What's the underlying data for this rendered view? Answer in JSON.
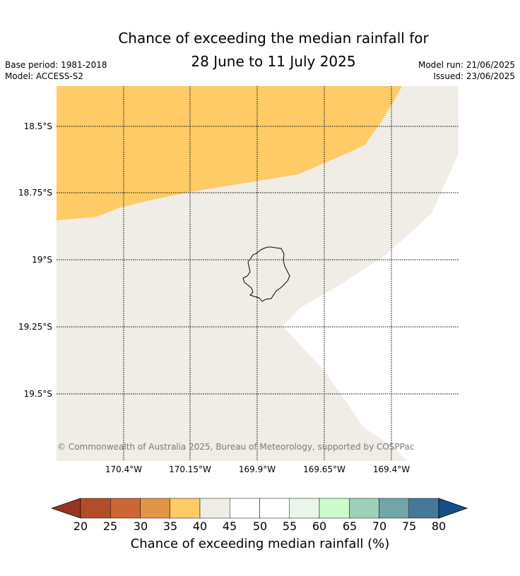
{
  "title_line1": "Chance of exceeding the median rainfall for",
  "title_line2": "28 June to 11 July 2025",
  "base_period": "Base period: 1981-2018",
  "model": "Model: ACCESS-S2",
  "model_run": "Model run: 21/06/2025",
  "issued": "Issued: 23/06/2025",
  "lat_labels": [
    "18.5°S",
    "18.75°S",
    "19°S",
    "19.25°S",
    "19.5°S"
  ],
  "lon_labels": [
    "170.4°W",
    "170.15°W",
    "169.9°W",
    "169.65°W",
    "169.4°W"
  ],
  "copyright": "© Commonwealth of Australia 2025, Bureau of Meteorology, supported by COSPPac",
  "colorbar": {
    "label": "Chance of exceeding median rainfall (%)",
    "ticks": [
      "20",
      "25",
      "30",
      "35",
      "40",
      "45",
      "50",
      "55",
      "60",
      "65",
      "70",
      "75",
      "80"
    ],
    "colors": [
      "#b34d26",
      "#cc6633",
      "#e09445",
      "#fecb66",
      "#f0ece6",
      "#ffffff",
      "#ffffff",
      "#e9f5e9",
      "#cafbca",
      "#9ecfb8",
      "#6fa6a8",
      "#447a99"
    ],
    "under_color": "#993322",
    "over_color": "#154f88"
  },
  "map_colors": {
    "band_35_40": "#fecb66",
    "band_40_45": "#f0ece6",
    "band_45_55": "#ffffff",
    "island_outline": "#000000"
  }
}
